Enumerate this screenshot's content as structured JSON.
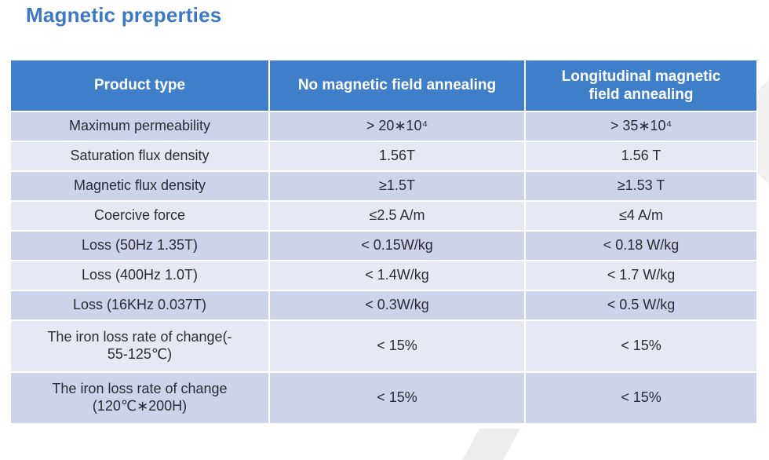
{
  "page": {
    "title": "Magnetic preperties"
  },
  "colors": {
    "title_text": "#3b79c5",
    "header_bg": "#3f7fca",
    "header_text": "#ffffff",
    "row_odd_bg": "#ccd3eb",
    "row_even_bg": "#e6e8f4",
    "body_text": "#2b2b33",
    "accent_shape": "#f0f0f1"
  },
  "table": {
    "columns": {
      "product": "Product type",
      "no_annealing": "No magnetic field annealing",
      "longitudinal": "Longitudinal magnetic\nfield annealing"
    },
    "rows": [
      {
        "label": "Maximum permeability",
        "no_annealing": "> 20∗10⁴",
        "longitudinal": "> 35∗10⁴"
      },
      {
        "label": "Saturation flux density",
        "no_annealing": "1.56T",
        "longitudinal": "1.56 T"
      },
      {
        "label": "Magnetic flux density",
        "no_annealing": "≥1.5T",
        "longitudinal": "≥1.53 T"
      },
      {
        "label": "Coercive force",
        "no_annealing": "≤2.5 A/m",
        "longitudinal": "≤4 A/m"
      },
      {
        "label": "Loss (50Hz 1.35T)",
        "no_annealing": "< 0.15W/kg",
        "longitudinal": "< 0.18 W/kg"
      },
      {
        "label": "Loss (400Hz 1.0T)",
        "no_annealing": "< 1.4W/kg",
        "longitudinal": "< 1.7 W/kg"
      },
      {
        "label": "Loss (16KHz 0.037T)",
        "no_annealing": "< 0.3W/kg",
        "longitudinal": "< 0.5 W/kg"
      },
      {
        "label": "The iron loss rate of change(-\n55-125℃)",
        "no_annealing": "< 15%",
        "longitudinal": "< 15%"
      },
      {
        "label": "The iron loss rate of change\n(120℃∗200H)",
        "no_annealing": "< 15%",
        "longitudinal": "< 15%"
      }
    ]
  }
}
